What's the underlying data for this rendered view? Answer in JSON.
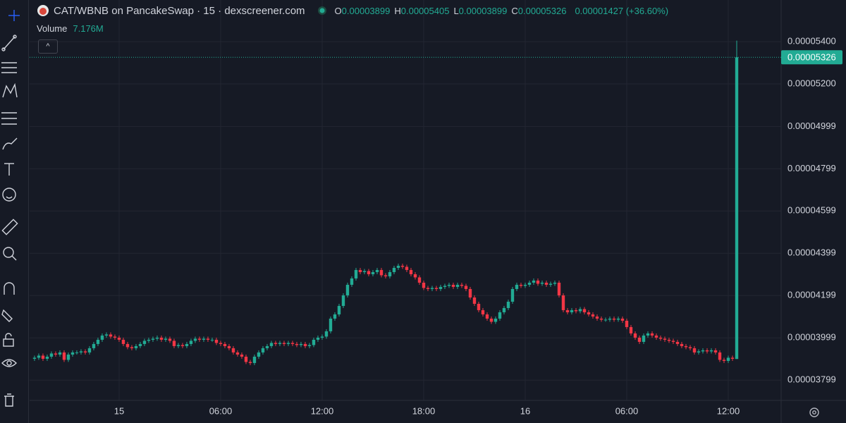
{
  "header": {
    "title": "CAT/WBNB on PancakeSwap · 15 · dexscreener.com",
    "ohlc": [
      {
        "key": "O",
        "value": "0.00003899"
      },
      {
        "key": "H",
        "value": "0.00005405"
      },
      {
        "key": "L",
        "value": "0.00003899"
      },
      {
        "key": "C",
        "value": "0.00005326"
      }
    ],
    "change": "0.00001427 (+36.60%)",
    "volume_label": "Volume",
    "volume_value": "7.176M"
  },
  "chart_data": {
    "type": "candlestick",
    "up_color": "#22ab94",
    "down_color": "#f23645",
    "grid": true,
    "last_price_label": "0.00005326",
    "xlim": [
      -5.29,
      39.125
    ],
    "xticks": [
      {
        "value": 0,
        "label": "15"
      },
      {
        "value": 6,
        "label": "06:00"
      },
      {
        "value": 12,
        "label": "12:00"
      },
      {
        "value": 18,
        "label": "18:00"
      },
      {
        "value": 24,
        "label": "16"
      },
      {
        "value": 30,
        "label": "06:00"
      },
      {
        "value": 36,
        "label": "12:00"
      }
    ],
    "ylim": [
      3.703e-05,
      5.597e-05
    ],
    "yticks": [
      {
        "value": 5.4e-05,
        "label": "0.00005400"
      },
      {
        "value": 5.2e-05,
        "label": "0.00005200"
      },
      {
        "value": 4.999e-05,
        "label": "0.00004999"
      },
      {
        "value": 4.799e-05,
        "label": "0.00004799"
      },
      {
        "value": 4.599e-05,
        "label": "0.00004599"
      },
      {
        "value": 4.399e-05,
        "label": "0.00004399"
      },
      {
        "value": 4.199e-05,
        "label": "0.00004199"
      },
      {
        "value": 3.999e-05,
        "label": "0.00003999"
      },
      {
        "value": 3.799e-05,
        "label": "0.00003799"
      }
    ],
    "x": [
      -5,
      -4.75,
      -4.5,
      -4.25,
      -4,
      -3.75,
      -3.5,
      -3.25,
      -3,
      -2.75,
      -2.5,
      -2.25,
      -2,
      -1.75,
      -1.5,
      -1.25,
      -1,
      -0.75,
      -0.5,
      -0.25,
      0,
      0.25,
      0.5,
      0.75,
      1,
      1.25,
      1.5,
      1.75,
      2,
      2.25,
      2.5,
      2.75,
      3,
      3.25,
      3.5,
      3.75,
      4,
      4.25,
      4.5,
      4.75,
      5,
      5.25,
      5.5,
      5.75,
      6,
      6.25,
      6.5,
      6.75,
      7,
      7.25,
      7.5,
      7.75,
      8,
      8.25,
      8.5,
      8.75,
      9,
      9.25,
      9.5,
      9.75,
      10,
      10.25,
      10.5,
      10.75,
      11,
      11.25,
      11.5,
      11.75,
      12,
      12.25,
      12.5,
      12.75,
      13,
      13.25,
      13.5,
      13.75,
      14,
      14.25,
      14.5,
      14.75,
      15,
      15.25,
      15.5,
      15.75,
      16,
      16.25,
      16.5,
      16.75,
      17,
      17.25,
      17.5,
      17.75,
      18,
      18.25,
      18.5,
      18.75,
      19,
      19.25,
      19.5,
      19.75,
      20,
      20.25,
      20.5,
      20.75,
      21,
      21.25,
      21.5,
      21.75,
      22,
      22.25,
      22.5,
      22.75,
      23,
      23.25,
      23.5,
      23.75,
      24,
      24.25,
      24.5,
      24.75,
      25,
      25.25,
      25.5,
      25.75,
      26,
      26.25,
      26.5,
      26.75,
      27,
      27.25,
      27.5,
      27.75,
      28,
      28.25,
      28.5,
      28.75,
      29,
      29.25,
      29.5,
      29.75,
      30,
      30.25,
      30.5,
      30.75,
      31,
      31.25,
      31.5,
      31.75,
      32,
      32.25,
      32.5,
      32.75,
      33,
      33.25,
      33.5,
      33.75,
      34,
      34.25,
      34.5,
      34.75,
      35,
      35.25,
      35.5,
      35.75,
      36,
      36.25,
      36.5
    ],
    "open": [
      3.9e-05,
      3.905e-05,
      3.915e-05,
      3.9e-05,
      3.91e-05,
      3.925e-05,
      3.92e-05,
      3.93e-05,
      3.895e-05,
      3.92e-05,
      3.93e-05,
      3.93e-05,
      3.935e-05,
      3.93e-05,
      3.95e-05,
      3.97e-05,
      3.99e-05,
      4.01e-05,
      4.015e-05,
      4.005e-05,
      4e-05,
      3.99e-05,
      3.97e-05,
      3.955e-05,
      3.95e-05,
      3.96e-05,
      3.97e-05,
      3.985e-05,
      3.99e-05,
      3.995e-05,
      4e-05,
      3.99e-05,
      3.995e-05,
      3.985e-05,
      3.96e-05,
      3.965e-05,
      3.96e-05,
      3.97e-05,
      3.985e-05,
      3.995e-05,
      3.99e-05,
      3.995e-05,
      3.99e-05,
      3.99e-05,
      3.975e-05,
      3.97e-05,
      3.96e-05,
      3.95e-05,
      3.93e-05,
      3.92e-05,
      3.91e-05,
      3.885e-05,
      3.88e-05,
      3.91e-05,
      3.93e-05,
      3.95e-05,
      3.96e-05,
      3.975e-05,
      3.97e-05,
      3.975e-05,
      3.97e-05,
      3.975e-05,
      3.97e-05,
      3.965e-05,
      3.97e-05,
      3.96e-05,
      3.965e-05,
      3.99e-05,
      4e-05,
      4.005e-05,
      4.03e-05,
      4.09e-05,
      4.11e-05,
      4.15e-05,
      4.2e-05,
      4.25e-05,
      4.28e-05,
      4.32e-05,
      4.31e-05,
      4.315e-05,
      4.3e-05,
      4.31e-05,
      4.32e-05,
      4.295e-05,
      4.29e-05,
      4.31e-05,
      4.33e-05,
      4.34e-05,
      4.335e-05,
      4.32e-05,
      4.3e-05,
      4.285e-05,
      4.26e-05,
      4.235e-05,
      4.23e-05,
      4.235e-05,
      4.23e-05,
      4.24e-05,
      4.245e-05,
      4.25e-05,
      4.24e-05,
      4.25e-05,
      4.245e-05,
      4.23e-05,
      4.19e-05,
      4.16e-05,
      4.13e-05,
      4.11e-05,
      4.09e-05,
      4.075e-05,
      4.09e-05,
      4.12e-05,
      4.14e-05,
      4.17e-05,
      4.23e-05,
      4.25e-05,
      4.245e-05,
      4.25e-05,
      4.26e-05,
      4.27e-05,
      4.255e-05,
      4.26e-05,
      4.25e-05,
      4.255e-05,
      4.26e-05,
      4.2e-05,
      4.13e-05,
      4.12e-05,
      4.13e-05,
      4.125e-05,
      4.135e-05,
      4.12e-05,
      4.11e-05,
      4.1e-05,
      4.09e-05,
      4.085e-05,
      4.085e-05,
      4.09e-05,
      4.085e-05,
      4.09e-05,
      4.08e-05,
      4.05e-05,
      4.02e-05,
      4e-05,
      3.98e-05,
      4.01e-05,
      4.02e-05,
      4.01e-05,
      4e-05,
      3.995e-05,
      3.99e-05,
      3.985e-05,
      3.98e-05,
      3.97e-05,
      3.96e-05,
      3.955e-05,
      3.95e-05,
      3.93e-05,
      3.935e-05,
      3.94e-05,
      3.935e-05,
      3.94e-05,
      3.93e-05,
      3.895e-05,
      3.89e-05,
      3.905e-05,
      3.899e-05
    ],
    "high": [
      3.915e-05,
      3.925e-05,
      3.925e-05,
      3.92e-05,
      3.935e-05,
      3.935e-05,
      3.94e-05,
      3.94e-05,
      3.93e-05,
      3.94e-05,
      3.94e-05,
      3.945e-05,
      3.945e-05,
      3.96e-05,
      3.98e-05,
      4e-05,
      4.02e-05,
      4.025e-05,
      4.025e-05,
      4.015e-05,
      4.01e-05,
      4e-05,
      3.98e-05,
      3.965e-05,
      3.97e-05,
      3.98e-05,
      3.995e-05,
      4e-05,
      4.005e-05,
      4.01e-05,
      4.01e-05,
      4.005e-05,
      4.005e-05,
      3.995e-05,
      3.975e-05,
      3.975e-05,
      3.98e-05,
      3.995e-05,
      4.005e-05,
      4.005e-05,
      4.005e-05,
      4.005e-05,
      4e-05,
      4e-05,
      3.985e-05,
      3.98e-05,
      3.97e-05,
      3.96e-05,
      3.94e-05,
      3.93e-05,
      3.92e-05,
      3.895e-05,
      3.92e-05,
      3.94e-05,
      3.96e-05,
      3.97e-05,
      3.985e-05,
      3.985e-05,
      3.985e-05,
      3.985e-05,
      3.985e-05,
      3.985e-05,
      3.98e-05,
      3.98e-05,
      3.98e-05,
      3.975e-05,
      4e-05,
      4.01e-05,
      4.015e-05,
      4.04e-05,
      4.1e-05,
      4.12e-05,
      4.16e-05,
      4.21e-05,
      4.26e-05,
      4.29e-05,
      4.33e-05,
      4.33e-05,
      4.325e-05,
      4.325e-05,
      4.32e-05,
      4.33e-05,
      4.33e-05,
      4.305e-05,
      4.32e-05,
      4.34e-05,
      4.35e-05,
      4.35e-05,
      4.345e-05,
      4.33e-05,
      4.31e-05,
      4.295e-05,
      4.27e-05,
      4.245e-05,
      4.245e-05,
      4.245e-05,
      4.25e-05,
      4.255e-05,
      4.26e-05,
      4.26e-05,
      4.26e-05,
      4.26e-05,
      4.255e-05,
      4.24e-05,
      4.2e-05,
      4.17e-05,
      4.14e-05,
      4.12e-05,
      4.1e-05,
      4.1e-05,
      4.13e-05,
      4.15e-05,
      4.18e-05,
      4.24e-05,
      4.26e-05,
      4.26e-05,
      4.26e-05,
      4.27e-05,
      4.28e-05,
      4.28e-05,
      4.27e-05,
      4.27e-05,
      4.265e-05,
      4.27e-05,
      4.27e-05,
      4.21e-05,
      4.14e-05,
      4.14e-05,
      4.14e-05,
      4.145e-05,
      4.145e-05,
      4.13e-05,
      4.12e-05,
      4.11e-05,
      4.1e-05,
      4.095e-05,
      4.1e-05,
      4.1e-05,
      4.1e-05,
      4.1e-05,
      4.09e-05,
      4.06e-05,
      4.03e-05,
      4.01e-05,
      4.02e-05,
      4.03e-05,
      4.03e-05,
      4.02e-05,
      4.01e-05,
      4.005e-05,
      4e-05,
      3.995e-05,
      3.99e-05,
      3.98e-05,
      3.97e-05,
      3.965e-05,
      3.96e-05,
      3.945e-05,
      3.95e-05,
      3.95e-05,
      3.95e-05,
      3.95e-05,
      3.94e-05,
      3.905e-05,
      3.915e-05,
      3.915e-05,
      5.405e-05
    ],
    "low": [
      3.89e-05,
      3.895e-05,
      3.89e-05,
      3.89e-05,
      3.9e-05,
      3.91e-05,
      3.91e-05,
      3.885e-05,
      3.885e-05,
      3.91e-05,
      3.92e-05,
      3.92e-05,
      3.92e-05,
      3.92e-05,
      3.94e-05,
      3.96e-05,
      3.98e-05,
      4e-05,
      3.995e-05,
      3.99e-05,
      3.98e-05,
      3.96e-05,
      3.945e-05,
      3.94e-05,
      3.94e-05,
      3.95e-05,
      3.96e-05,
      3.975e-05,
      3.98e-05,
      3.985e-05,
      3.98e-05,
      3.98e-05,
      3.975e-05,
      3.95e-05,
      3.95e-05,
      3.95e-05,
      3.95e-05,
      3.96e-05,
      3.975e-05,
      3.98e-05,
      3.98e-05,
      3.98e-05,
      3.98e-05,
      3.965e-05,
      3.96e-05,
      3.95e-05,
      3.94e-05,
      3.92e-05,
      3.91e-05,
      3.9e-05,
      3.875e-05,
      3.87e-05,
      3.87e-05,
      3.9e-05,
      3.92e-05,
      3.94e-05,
      3.95e-05,
      3.96e-05,
      3.96e-05,
      3.96e-05,
      3.96e-05,
      3.96e-05,
      3.955e-05,
      3.955e-05,
      3.95e-05,
      3.95e-05,
      3.955e-05,
      3.98e-05,
      3.99e-05,
      3.995e-05,
      4.02e-05,
      4.08e-05,
      4.1e-05,
      4.14e-05,
      4.19e-05,
      4.24e-05,
      4.27e-05,
      4.3e-05,
      4.3e-05,
      4.29e-05,
      4.29e-05,
      4.3e-05,
      4.285e-05,
      4.28e-05,
      4.28e-05,
      4.3e-05,
      4.32e-05,
      4.325e-05,
      4.31e-05,
      4.29e-05,
      4.275e-05,
      4.25e-05,
      4.225e-05,
      4.22e-05,
      4.22e-05,
      4.22e-05,
      4.22e-05,
      4.23e-05,
      4.235e-05,
      4.23e-05,
      4.23e-05,
      4.235e-05,
      4.22e-05,
      4.18e-05,
      4.15e-05,
      4.12e-05,
      4.1e-05,
      4.08e-05,
      4.065e-05,
      4.065e-05,
      4.08e-05,
      4.11e-05,
      4.13e-05,
      4.16e-05,
      4.22e-05,
      4.235e-05,
      4.235e-05,
      4.24e-05,
      4.25e-05,
      4.245e-05,
      4.245e-05,
      4.24e-05,
      4.24e-05,
      4.245e-05,
      4.19e-05,
      4.12e-05,
      4.11e-05,
      4.11e-05,
      4.115e-05,
      4.115e-05,
      4.11e-05,
      4.1e-05,
      4.09e-05,
      4.08e-05,
      4.075e-05,
      4.075e-05,
      4.075e-05,
      4.075e-05,
      4.075e-05,
      4.07e-05,
      4.04e-05,
      4.01e-05,
      3.99e-05,
      3.97e-05,
      3.97e-05,
      4e-05,
      4e-05,
      3.99e-05,
      3.985e-05,
      3.98e-05,
      3.975e-05,
      3.97e-05,
      3.96e-05,
      3.95e-05,
      3.945e-05,
      3.94e-05,
      3.92e-05,
      3.92e-05,
      3.925e-05,
      3.925e-05,
      3.925e-05,
      3.92e-05,
      3.885e-05,
      3.88e-05,
      3.88e-05,
      3.89e-05,
      3.899e-05
    ],
    "close": [
      3.905e-05,
      3.915e-05,
      3.9e-05,
      3.91e-05,
      3.925e-05,
      3.92e-05,
      3.93e-05,
      3.895e-05,
      3.92e-05,
      3.93e-05,
      3.93e-05,
      3.935e-05,
      3.93e-05,
      3.95e-05,
      3.97e-05,
      3.99e-05,
      4.01e-05,
      4.015e-05,
      4.005e-05,
      4e-05,
      3.99e-05,
      3.97e-05,
      3.955e-05,
      3.95e-05,
      3.96e-05,
      3.97e-05,
      3.985e-05,
      3.99e-05,
      3.995e-05,
      4e-05,
      3.99e-05,
      3.995e-05,
      3.985e-05,
      3.96e-05,
      3.965e-05,
      3.96e-05,
      3.97e-05,
      3.985e-05,
      3.995e-05,
      3.99e-05,
      3.995e-05,
      3.99e-05,
      3.99e-05,
      3.975e-05,
      3.97e-05,
      3.96e-05,
      3.95e-05,
      3.93e-05,
      3.92e-05,
      3.91e-05,
      3.885e-05,
      3.88e-05,
      3.91e-05,
      3.93e-05,
      3.95e-05,
      3.96e-05,
      3.975e-05,
      3.97e-05,
      3.975e-05,
      3.97e-05,
      3.975e-05,
      3.97e-05,
      3.965e-05,
      3.97e-05,
      3.96e-05,
      3.965e-05,
      3.99e-05,
      4e-05,
      4.005e-05,
      4.03e-05,
      4.09e-05,
      4.11e-05,
      4.15e-05,
      4.2e-05,
      4.25e-05,
      4.28e-05,
      4.32e-05,
      4.31e-05,
      4.315e-05,
      4.3e-05,
      4.31e-05,
      4.32e-05,
      4.295e-05,
      4.29e-05,
      4.31e-05,
      4.33e-05,
      4.34e-05,
      4.335e-05,
      4.32e-05,
      4.3e-05,
      4.285e-05,
      4.26e-05,
      4.235e-05,
      4.23e-05,
      4.235e-05,
      4.23e-05,
      4.24e-05,
      4.245e-05,
      4.25e-05,
      4.24e-05,
      4.25e-05,
      4.245e-05,
      4.23e-05,
      4.19e-05,
      4.16e-05,
      4.13e-05,
      4.11e-05,
      4.09e-05,
      4.075e-05,
      4.09e-05,
      4.12e-05,
      4.14e-05,
      4.17e-05,
      4.23e-05,
      4.25e-05,
      4.245e-05,
      4.25e-05,
      4.26e-05,
      4.27e-05,
      4.255e-05,
      4.26e-05,
      4.25e-05,
      4.255e-05,
      4.26e-05,
      4.2e-05,
      4.13e-05,
      4.12e-05,
      4.13e-05,
      4.125e-05,
      4.135e-05,
      4.12e-05,
      4.11e-05,
      4.1e-05,
      4.09e-05,
      4.085e-05,
      4.085e-05,
      4.09e-05,
      4.085e-05,
      4.09e-05,
      4.08e-05,
      4.05e-05,
      4.02e-05,
      4e-05,
      3.98e-05,
      4.01e-05,
      4.02e-05,
      4.01e-05,
      4e-05,
      3.995e-05,
      3.99e-05,
      3.985e-05,
      3.98e-05,
      3.97e-05,
      3.96e-05,
      3.955e-05,
      3.95e-05,
      3.93e-05,
      3.935e-05,
      3.94e-05,
      3.935e-05,
      3.94e-05,
      3.93e-05,
      3.895e-05,
      3.89e-05,
      3.905e-05,
      3.9e-05,
      5.326e-05
    ]
  }
}
